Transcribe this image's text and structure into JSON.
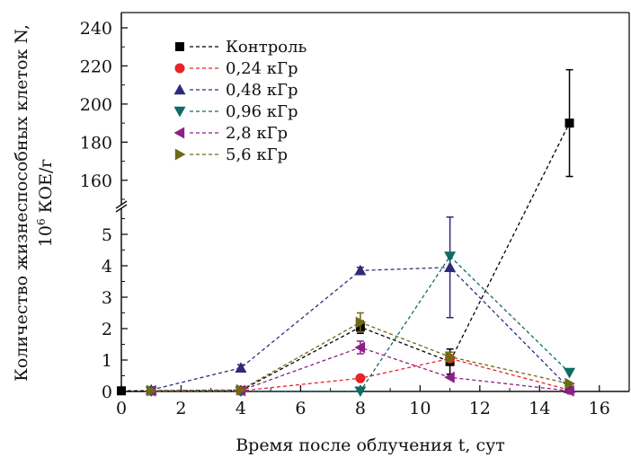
{
  "chart_data": {
    "type": "scatter",
    "xlabel": "Время после облучения t, сут",
    "ylabel_line1": "Количество жизнеспособных клеток N,",
    "ylabel_line2_prefix": "10",
    "ylabel_line2_exp": "6",
    "ylabel_line2_suffix": " КОЕ/г",
    "xlim": [
      0,
      17
    ],
    "ylim_lower": [
      0,
      5.6
    ],
    "ylim_upper": [
      150,
      248
    ],
    "y_axis_break": true,
    "grid": false,
    "legend_position": "top-left",
    "x_ticks": [
      0,
      2,
      4,
      6,
      8,
      10,
      12,
      14,
      16
    ],
    "y_ticks_lower": [
      0,
      1,
      2,
      3,
      4,
      5
    ],
    "y_ticks_upper": [
      160,
      180,
      200,
      220,
      240
    ],
    "series": [
      {
        "name": "Контроль",
        "marker": "square",
        "color": "#000000",
        "x": [
          0,
          1,
          4,
          8,
          11,
          15
        ],
        "y": [
          0.02,
          0.02,
          0.03,
          2.05,
          0.95,
          190
        ],
        "err": [
          0,
          0,
          0,
          0.2,
          0.4,
          28
        ]
      },
      {
        "name": "0,24 кГр",
        "marker": "circle",
        "color": "#e8232a",
        "x": [
          1,
          4,
          8,
          11,
          15
        ],
        "y": [
          0.02,
          0.02,
          0.42,
          1.05,
          0.05
        ],
        "err": [
          0,
          0,
          0,
          0,
          0
        ]
      },
      {
        "name": "0,48 кГр",
        "marker": "triangle-up",
        "color": "#2e2a7a",
        "x": [
          1,
          4,
          8,
          11,
          15
        ],
        "y": [
          0.05,
          0.75,
          3.85,
          3.95,
          0.1
        ],
        "err": [
          0,
          0.1,
          0.1,
          1.6,
          0
        ]
      },
      {
        "name": "0,96 кГр",
        "marker": "triangle-down",
        "color": "#0e6b66",
        "x": [
          1,
          4,
          8,
          11,
          15
        ],
        "y": [
          0.01,
          0.01,
          0.01,
          4.3,
          0.6
        ],
        "err": [
          0,
          0,
          0,
          0,
          0
        ]
      },
      {
        "name": "2,8 кГр",
        "marker": "triangle-left",
        "color": "#8e1f8a",
        "x": [
          1,
          4,
          8,
          11,
          15
        ],
        "y": [
          0.02,
          0.03,
          1.4,
          0.45,
          0.02
        ],
        "err": [
          0,
          0,
          0.2,
          0,
          0
        ]
      },
      {
        "name": "5,6 кГр",
        "marker": "triangle-right",
        "color": "#6f6a14",
        "x": [
          1,
          4,
          8,
          11,
          15
        ],
        "y": [
          0.03,
          0.05,
          2.2,
          1.1,
          0.25
        ],
        "err": [
          0,
          0,
          0.3,
          0.15,
          0
        ]
      }
    ]
  }
}
